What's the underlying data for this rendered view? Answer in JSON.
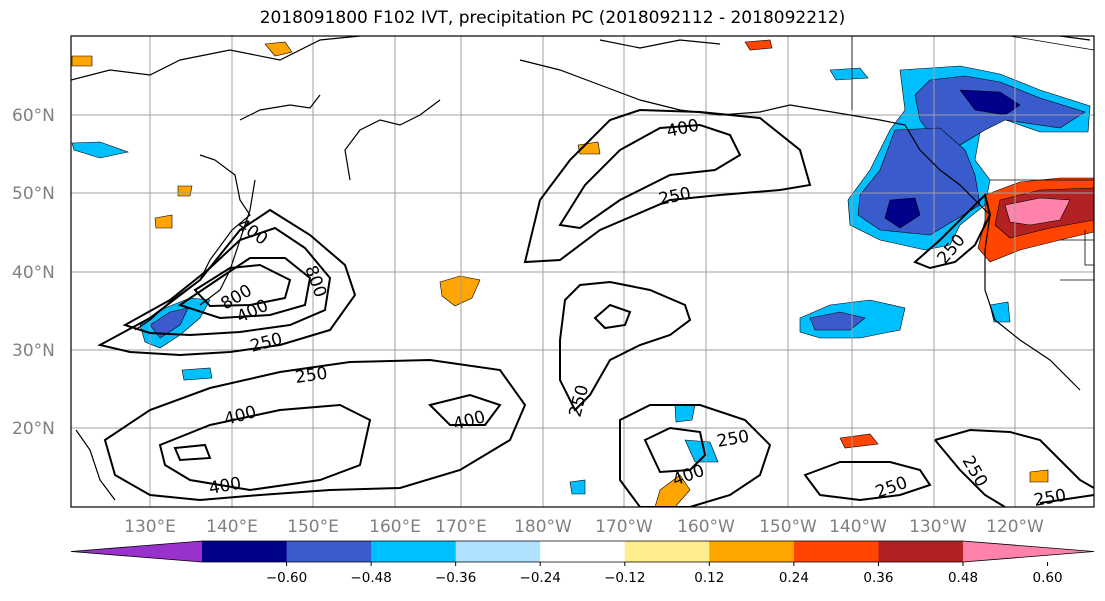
{
  "title": "2018091800 F102 IVT, precipitation PC (2018092112 - 2018092212)",
  "lat_labels": [
    "60°N",
    "50°N",
    "40°N",
    "30°N",
    "20°N"
  ],
  "lon_labels": [
    "130°E",
    "140°E",
    "150°E",
    "160°E",
    "170°E",
    "180°W",
    "170°W",
    "160°W",
    "150°W",
    "140°W",
    "130°W",
    "120°W"
  ],
  "colorbar": {
    "colors": [
      "#9932cc",
      "#00008b",
      "#3a5bcc",
      "#00bfff",
      "#b0e2ff",
      "#ffffff",
      "#ffec8b",
      "#ffa500",
      "#ff4500",
      "#b22222",
      "#ff82ab"
    ],
    "tick_labels": [
      "−0.60",
      "−0.48",
      "−0.36",
      "−0.24",
      "−0.12",
      "0.12",
      "0.24",
      "0.36",
      "0.48",
      "0.60"
    ]
  },
  "contour_labels": [
    "400",
    "400",
    "800",
    "800",
    "250",
    "250",
    "250",
    "400",
    "400",
    "400",
    "250",
    "400",
    "250",
    "250",
    "250",
    "250",
    "250",
    "250"
  ]
}
